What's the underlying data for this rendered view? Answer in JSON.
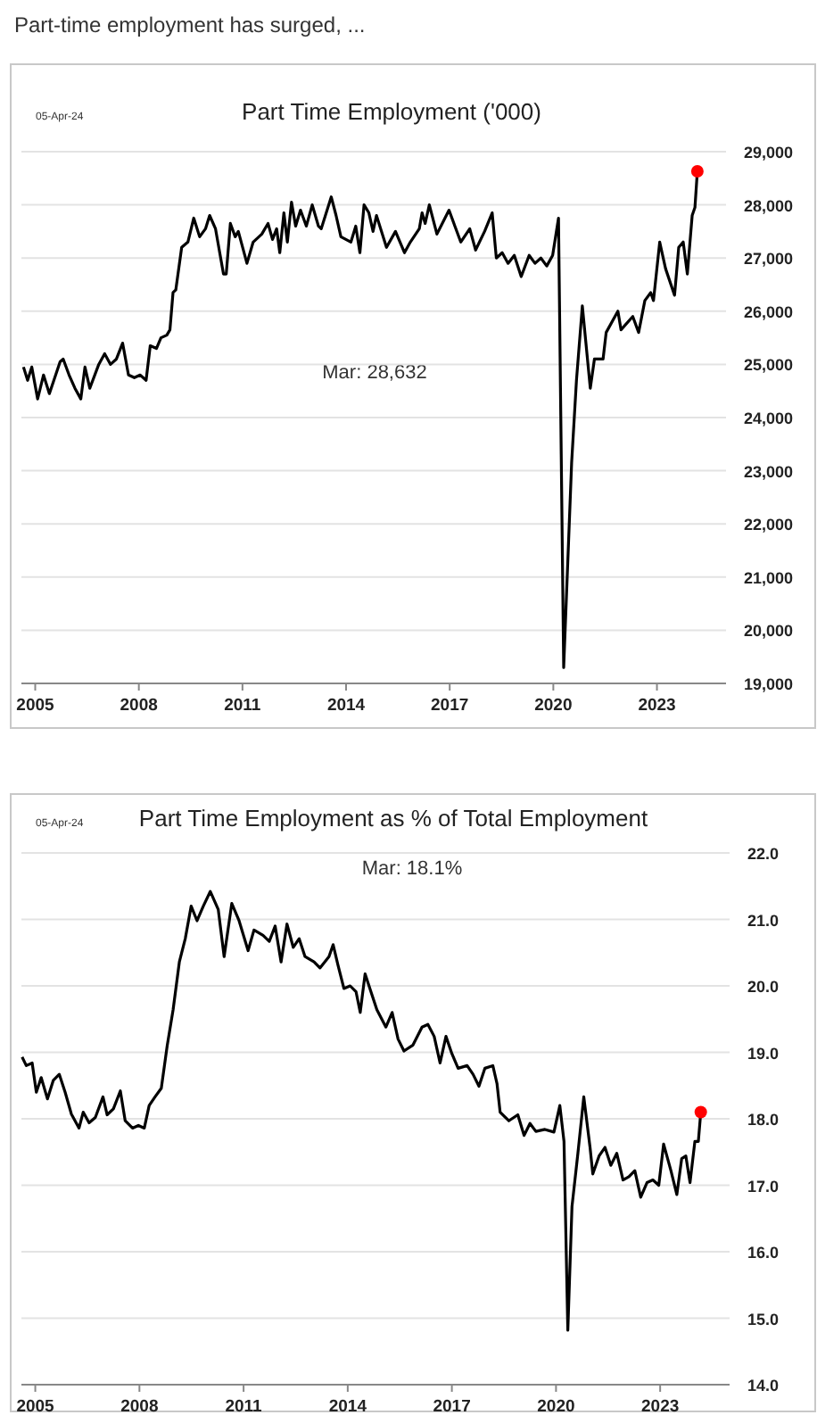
{
  "chart_data": [
    {
      "type": "line",
      "title": "Part Time Employment ('000)",
      "annotations": [
        "Part-time employment has surged, ...",
        "05-Apr-24",
        "Mar:  28,632"
      ],
      "xlim": [
        2004.6,
        2025
      ],
      "xticks": [
        2005,
        2008,
        2011,
        2014,
        2017,
        2020,
        2023
      ],
      "ylim": [
        19000,
        29000
      ],
      "yticks": [
        {
          "value": 19000,
          "label": "19,000"
        },
        {
          "value": 20000,
          "label": "20,000"
        },
        {
          "value": 21000,
          "label": "21,000"
        },
        {
          "value": 22000,
          "label": "22,000"
        },
        {
          "value": 23000,
          "label": "23,000"
        },
        {
          "value": 24000,
          "label": "24,000"
        },
        {
          "value": 25000,
          "label": "25,000"
        },
        {
          "value": 26000,
          "label": "26,000"
        },
        {
          "value": 27000,
          "label": "27,000"
        },
        {
          "value": 28000,
          "label": "28,000"
        },
        {
          "value": 29000,
          "label": "29,000"
        }
      ],
      "grid": "y",
      "series": [
        {
          "color": "#000000",
          "x": [
            2004.66,
            2004.78,
            2004.9,
            2005.07,
            2005.24,
            2005.41,
            2005.72,
            2005.81,
            2005.98,
            2006.15,
            2006.32,
            2006.44,
            2006.58,
            2006.84,
            2007.01,
            2007.18,
            2007.35,
            2007.53,
            2007.7,
            2007.87,
            2008.04,
            2008.21,
            2008.33,
            2008.51,
            2008.64,
            2008.81,
            2008.9,
            2008.99,
            2009.07,
            2009.24,
            2009.42,
            2009.59,
            2009.76,
            2009.93,
            2010.05,
            2010.22,
            2010.45,
            2010.53,
            2010.65,
            2010.79,
            2010.88,
            2011.13,
            2011.31,
            2011.56,
            2011.74,
            2011.87,
            2011.99,
            2012.08,
            2012.2,
            2012.3,
            2012.42,
            2012.54,
            2012.68,
            2012.85,
            2013.02,
            2013.2,
            2013.28,
            2013.57,
            2013.71,
            2013.85,
            2014.14,
            2014.28,
            2014.4,
            2014.52,
            2014.66,
            2014.78,
            2014.88,
            2015.17,
            2015.43,
            2015.69,
            2015.86,
            2016.12,
            2016.2,
            2016.29,
            2016.41,
            2016.63,
            2016.98,
            2017.15,
            2017.32,
            2017.58,
            2017.75,
            2018.01,
            2018.23,
            2018.35,
            2018.52,
            2018.69,
            2018.87,
            2019.07,
            2019.3,
            2019.47,
            2019.64,
            2019.81,
            2019.98,
            2020.15,
            2020.3,
            2020.53,
            2020.67,
            2020.84,
            2021.07,
            2021.19,
            2021.44,
            2021.53,
            2021.87,
            2021.96,
            2022.3,
            2022.47,
            2022.65,
            2022.82,
            2022.9,
            2023.08,
            2023.25,
            2023.51,
            2023.63,
            2023.76,
            2023.88,
            2024.02,
            2024.1,
            2024.17
          ],
          "values": [
            24950,
            24700,
            24950,
            24350,
            24800,
            24450,
            25050,
            25100,
            24800,
            24550,
            24350,
            24950,
            24550,
            25000,
            25200,
            25000,
            25100,
            25400,
            24800,
            24750,
            24800,
            24700,
            25350,
            25300,
            25500,
            25550,
            25650,
            26350,
            26400,
            27200,
            27300,
            27750,
            27400,
            27550,
            27800,
            27550,
            26700,
            26700,
            27650,
            27400,
            27500,
            26900,
            27300,
            27450,
            27650,
            27350,
            27550,
            27100,
            27850,
            27300,
            28050,
            27600,
            27900,
            27600,
            28000,
            27600,
            27550,
            28150,
            27800,
            27400,
            27300,
            27600,
            27100,
            28000,
            27850,
            27500,
            27800,
            27200,
            27500,
            27100,
            27300,
            27550,
            27850,
            27650,
            28000,
            27450,
            27900,
            27600,
            27300,
            27550,
            27150,
            27500,
            27850,
            27000,
            27100,
            26900,
            27050,
            26650,
            27050,
            26900,
            27000,
            26850,
            27050,
            27750,
            19300,
            23150,
            24700,
            26100,
            24550,
            25100,
            25100,
            25600,
            26000,
            25650,
            25900,
            25600,
            26200,
            26350,
            26200,
            27300,
            26800,
            26300,
            27200,
            27300,
            26700,
            27800,
            27950,
            28632
          ]
        },
        {
          "type": "scatter",
          "color": "#ff0000",
          "marker": "circle",
          "x": [
            2024.17
          ],
          "values": [
            28632
          ]
        }
      ]
    },
    {
      "type": "line",
      "title": "Part Time Employment as % of Total Employment",
      "annotations": [
        "05-Apr-24",
        "Mar:   18.1%"
      ],
      "xlim": [
        2004.6,
        2025
      ],
      "xticks": [
        2005,
        2008,
        2011,
        2014,
        2017,
        2020,
        2023
      ],
      "ylim": [
        14,
        22
      ],
      "yticks": [
        {
          "value": 14,
          "label": "14.0"
        },
        {
          "value": 15,
          "label": "15.0"
        },
        {
          "value": 16,
          "label": "16.0"
        },
        {
          "value": 17,
          "label": "17.0"
        },
        {
          "value": 18,
          "label": "18.0"
        },
        {
          "value": 19,
          "label": "19.0"
        },
        {
          "value": 20,
          "label": "20.0"
        },
        {
          "value": 21,
          "label": "21.0"
        },
        {
          "value": 22,
          "label": "22.0"
        }
      ],
      "grid": "y",
      "series": [
        {
          "color": "#000000",
          "x": [
            2004.62,
            2004.74,
            2004.91,
            2005.03,
            2005.17,
            2005.35,
            2005.52,
            2005.69,
            2005.86,
            2006.04,
            2006.26,
            2006.38,
            2006.55,
            2006.73,
            2006.95,
            2007.07,
            2007.25,
            2007.45,
            2007.59,
            2007.8,
            2007.97,
            2008.14,
            2008.28,
            2008.45,
            2008.63,
            2008.8,
            2008.97,
            2009.15,
            2009.32,
            2009.49,
            2009.66,
            2009.84,
            2010.04,
            2010.27,
            2010.44,
            2010.66,
            2010.87,
            2011.13,
            2011.3,
            2011.56,
            2011.74,
            2011.91,
            2012.08,
            2012.25,
            2012.43,
            2012.6,
            2012.77,
            2013.03,
            2013.2,
            2013.46,
            2013.58,
            2013.72,
            2013.89,
            2014.07,
            2014.24,
            2014.36,
            2014.5,
            2014.67,
            2014.84,
            2015.1,
            2015.28,
            2015.45,
            2015.62,
            2015.88,
            2016.14,
            2016.31,
            2016.49,
            2016.66,
            2016.83,
            2017.0,
            2017.18,
            2017.44,
            2017.61,
            2017.78,
            2017.95,
            2018.18,
            2018.3,
            2018.39,
            2018.64,
            2018.9,
            2019.08,
            2019.25,
            2019.42,
            2019.68,
            2019.94,
            2020.11,
            2020.23,
            2020.34,
            2020.46,
            2020.63,
            2020.8,
            2020.98,
            2021.06,
            2021.24,
            2021.41,
            2021.58,
            2021.75,
            2021.93,
            2022.1,
            2022.27,
            2022.44,
            2022.62,
            2022.79,
            2022.96,
            2023.1,
            2023.31,
            2023.48,
            2023.62,
            2023.74,
            2023.86,
            2024.0,
            2024.1,
            2024.17
          ],
          "values": [
            18.93,
            18.8,
            18.84,
            18.4,
            18.62,
            18.3,
            18.58,
            18.67,
            18.4,
            18.07,
            17.86,
            18.1,
            17.94,
            18.02,
            18.33,
            18.06,
            18.15,
            18.42,
            17.97,
            17.86,
            17.9,
            17.86,
            18.2,
            18.33,
            18.46,
            19.1,
            19.64,
            20.36,
            20.71,
            21.2,
            20.98,
            21.2,
            21.42,
            21.15,
            20.44,
            21.24,
            20.98,
            20.53,
            20.84,
            20.76,
            20.67,
            20.9,
            20.36,
            20.93,
            20.58,
            20.71,
            20.44,
            20.36,
            20.27,
            20.44,
            20.62,
            20.31,
            19.96,
            20.0,
            19.91,
            19.6,
            20.18,
            19.91,
            19.64,
            19.38,
            19.6,
            19.2,
            19.02,
            19.11,
            19.38,
            19.42,
            19.24,
            18.84,
            19.24,
            18.98,
            18.76,
            18.8,
            18.67,
            18.49,
            18.76,
            18.8,
            18.53,
            18.1,
            17.97,
            18.06,
            17.75,
            17.93,
            17.81,
            17.84,
            17.8,
            18.2,
            17.66,
            14.82,
            16.68,
            17.48,
            18.33,
            17.57,
            17.17,
            17.44,
            17.57,
            17.3,
            17.48,
            17.08,
            17.13,
            17.22,
            16.82,
            17.04,
            17.08,
            17.0,
            17.62,
            17.22,
            16.86,
            17.4,
            17.44,
            17.04,
            17.66,
            17.66,
            18.1
          ]
        },
        {
          "type": "scatter",
          "color": "#ff0000",
          "marker": "circle",
          "x": [
            2024.17
          ],
          "values": [
            18.1
          ]
        }
      ]
    }
  ]
}
